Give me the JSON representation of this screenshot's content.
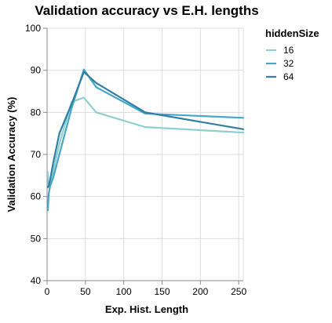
{
  "chart_data": {
    "type": "line",
    "title": "Validation accuracy vs E.H. lengths",
    "xlabel": "Exp. Hist. Length",
    "ylabel": "Validation Accuracy (%)",
    "xlim": [
      0,
      256
    ],
    "ylim": [
      40,
      100
    ],
    "xticks": [
      0,
      50,
      100,
      150,
      200,
      250
    ],
    "yticks": [
      40,
      50,
      60,
      70,
      80,
      90,
      100
    ],
    "grid": true,
    "legend": {
      "title": "hiddenSize",
      "position": "right"
    },
    "series": [
      {
        "name": "16",
        "color": "#8fcfcf",
        "x": [
          1,
          2,
          4,
          8,
          16,
          32,
          48,
          64,
          128,
          256
        ],
        "y": [
          65.8,
          62.5,
          63.0,
          66.0,
          72.5,
          82.5,
          83.5,
          80.0,
          76.5,
          75.2
        ]
      },
      {
        "name": "32",
        "color": "#46a6c7",
        "x": [
          1,
          2,
          4,
          8,
          16,
          32,
          48,
          64,
          128,
          256
        ],
        "y": [
          56.7,
          60.5,
          62.5,
          64.5,
          70.0,
          81.0,
          90.2,
          86.0,
          79.7,
          78.7
        ]
      },
      {
        "name": "64",
        "color": "#2e7fa3",
        "x": [
          1,
          2,
          4,
          8,
          16,
          32,
          48,
          64,
          128,
          256
        ],
        "y": [
          62.2,
          62.5,
          64.0,
          68.0,
          75.0,
          82.0,
          89.6,
          87.0,
          80.0,
          76.0
        ]
      }
    ]
  }
}
